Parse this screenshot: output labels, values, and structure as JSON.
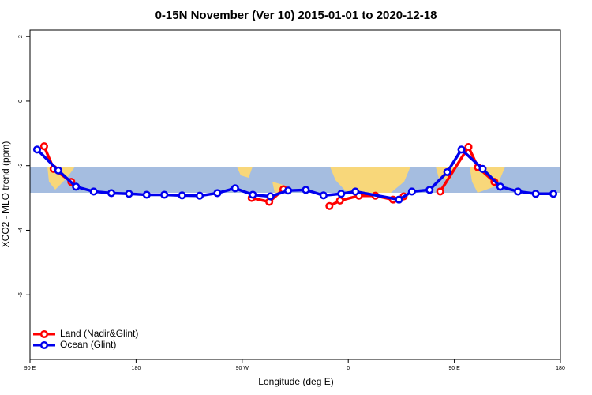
{
  "chart_data": {
    "type": "line",
    "title": "0-15N November (Ver 10)   2015-01-01 to 2020-12-18",
    "xlabel": "Longitude (deg E)",
    "ylabel": "XCO2 - MLO trend (ppm)",
    "xlim": [
      90,
      540
    ],
    "ylim": [
      -8,
      2.2
    ],
    "xticks": [
      {
        "value": 90,
        "label": "90 E"
      },
      180,
      {
        "value": 270,
        "label": "90 W"
      },
      {
        "value": 360,
        "label": "0"
      },
      {
        "value": 450,
        "label": "90 E"
      },
      {
        "value": 540,
        "label": "180"
      }
    ],
    "yticks": [
      -6,
      -4,
      -2,
      0,
      2
    ],
    "legend": "bottom-left",
    "series": [
      {
        "name": "Land (Nadir&Glint)",
        "color": "#ff0000",
        "x": [
          102,
          110,
          125,
          200,
          278,
          293,
          305,
          325,
          344,
          353,
          369,
          383,
          398,
          407,
          420,
          438,
          462,
          470,
          484
        ],
        "values": [
          -1.4,
          -2.1,
          -2.5,
          null,
          -3.0,
          -3.12,
          -2.73,
          null,
          -3.25,
          -3.08,
          -2.93,
          -2.93,
          -3.05,
          -2.95,
          null,
          -2.8,
          -1.42,
          -2.05,
          -2.5
        ]
      },
      {
        "name": "Ocean (Glint)",
        "color": "#0000ee",
        "x": [
          96,
          114,
          129,
          144,
          159,
          174,
          189,
          204,
          219,
          234,
          249,
          264,
          279,
          294,
          309,
          324,
          339,
          354,
          366,
          403,
          414,
          429,
          444,
          456,
          474,
          489,
          504,
          519,
          534
        ],
        "values": [
          -1.5,
          -2.15,
          -2.65,
          -2.8,
          -2.85,
          -2.87,
          -2.9,
          -2.9,
          -2.92,
          -2.93,
          -2.85,
          -2.7,
          -2.9,
          -2.95,
          -2.77,
          -2.75,
          -2.92,
          -2.87,
          -2.8,
          -3.05,
          -2.8,
          -2.75,
          -2.2,
          -1.5,
          -2.1,
          -2.65,
          -2.8,
          -2.87,
          -2.87
        ]
      }
    ]
  }
}
